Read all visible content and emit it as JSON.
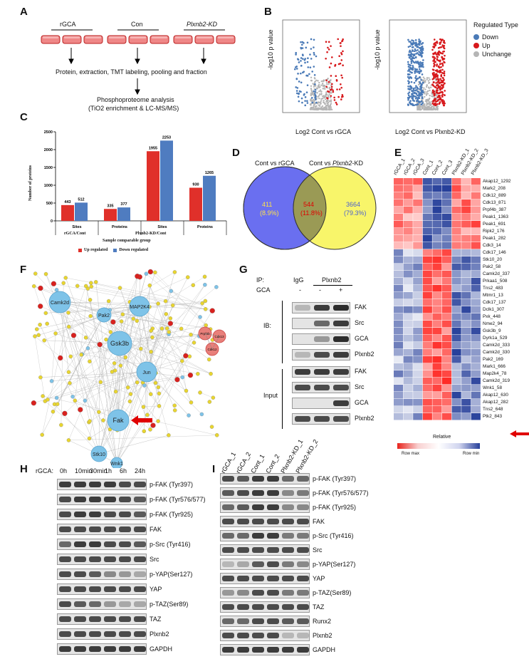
{
  "panels": {
    "A": "A",
    "B": "B",
    "C": "C",
    "D": "D",
    "E": "E",
    "F": "F",
    "G": "G",
    "H": "H",
    "I": "I"
  },
  "panelA": {
    "groups": [
      "rGCA",
      "Con",
      "Plxnb2-KD"
    ],
    "step1": "Protein, extraction, TMT labeling, pooling and fraction",
    "step2_line1": "Phosphoproteome analysis",
    "step2_line2": "(TiO2 enrichment & LC-MS/MS)"
  },
  "panelB": {
    "ylabel": "-log10 p value",
    "xlabel_left": "Log2 Cont vs rGCA",
    "xlabel_right": "Log2 Cont vs Plxnb2-KD",
    "legend_title": "Regulated Type",
    "legend": [
      {
        "label": "Down",
        "color": "#4a7ab7"
      },
      {
        "label": "Up",
        "color": "#d7191c"
      },
      {
        "label": "Unchange",
        "color": "#b5b5b5"
      }
    ]
  },
  "chart_data": {
    "type": "bar",
    "categories": [
      "Sites",
      "Proteins",
      "Sites",
      "Proteins"
    ],
    "groups": [
      "rGCA/Cont",
      "Plxnb2-KD/Cont"
    ],
    "series": [
      {
        "name": "Up regulated",
        "values": [
          443,
          335,
          1955,
          930
        ],
        "color": "#e0302a"
      },
      {
        "name": "Down regulated",
        "values": [
          512,
          377,
          2253,
          1265
        ],
        "color": "#4f7cc0"
      }
    ],
    "ylabel": "Number of proteins",
    "xlabel": "Sample comparable group",
    "ylim": [
      0,
      2500
    ],
    "yticks": [
      "0",
      "500",
      "1000",
      "1500",
      "2000",
      "2500"
    ],
    "legend_position": "bottom"
  },
  "panelD": {
    "left_title": "Cont vs rGCA",
    "right_title": "Cont vs Plxnb2-KD",
    "left_count": "411",
    "left_pct": "(8.9%)",
    "mid_count": "544",
    "mid_pct": "(11.8%)",
    "right_count": "3664",
    "right_pct": "(79.3%)"
  },
  "panelE": {
    "columns": [
      "rGCA_1",
      "rGCA_2",
      "rGCA_3",
      "Cont_1",
      "Cont_2",
      "Cont_3",
      "Plxnb2-KD_1",
      "Plxnb2-KD_2",
      "Plxnb2-KD_3"
    ],
    "rows": [
      "Akap12_1292",
      "Mark2_208",
      "Cdk12_889",
      "Cdk13_871",
      "Prpf4b_387",
      "Peak1_1363",
      "Peak1_691",
      "Ripk2_176",
      "Peak1_282",
      "Cdk3_14",
      "Cdk17_146",
      "Stk10_20",
      "Pak2_58",
      "Camk2d_337",
      "Prkaa1_508",
      "Tns2_483",
      "Mtmr1_13",
      "Cdk17_137",
      "Dclk1_307",
      "Pxk_448",
      "Nme2_94",
      "Gsk3b_9",
      "Dyrk1a_529",
      "Camk2d_333",
      "Camk2d_330",
      "Pak2_169",
      "Mark1_666",
      "Map2k4_78",
      "Camk2d_319",
      "Wnk1_58",
      "Akap12_630",
      "Akap12_282",
      "Tns2_648",
      "Ptk2_843"
    ],
    "legend_title": "Relative",
    "legend_max": "Row max",
    "legend_min": "Row min"
  },
  "panelF": {
    "hubs": [
      "Camk2d",
      "Pak2",
      "MAP2K4",
      "Gsk3b",
      "Jun",
      "Fak",
      "Stk10",
      "Wnk1"
    ],
    "red_nodes": [
      "Prpf4b",
      "Cdk13",
      "Cdk12"
    ]
  },
  "panelG": {
    "ip_label": "IP:",
    "ip_cols": [
      "IgG",
      "Plxnb2"
    ],
    "gca_label": "GCA",
    "gca_signs": [
      "-",
      "-",
      "+"
    ],
    "ib_label": "IB:",
    "input_label": "Input",
    "ib_rows": [
      "FAK",
      "Src",
      "GCA",
      "Plxnb2"
    ],
    "input_rows": [
      "FAK",
      "Src",
      "GCA",
      "Plxnb2"
    ]
  },
  "panelH": {
    "treatment": "rGCA:",
    "timepoints": [
      "0h",
      "10min",
      "30min",
      "1h",
      "6h",
      "24h"
    ],
    "rows": [
      "p-FAK (Tyr397)",
      "p-FAK (Tyr576/577)",
      "p-FAK (Tyr925)",
      "FAK",
      "p-Src (Tyr416)",
      "Src",
      "p-YAP(Ser127)",
      "YAP",
      "p-TAZ(Ser89)",
      "TAZ",
      "Plxnb2",
      "GAPDH"
    ]
  },
  "panelI": {
    "columns": [
      "rGCA_1",
      "rGCA_2",
      "Cont_1",
      "Cont_2",
      "Plxnb2-KD_1",
      "Plxnb2-KD_2"
    ],
    "rows": [
      "p-FAK (Tyr397)",
      "p-FAK (Tyr576/577)",
      "p-FAK (Tyr925)",
      "FAK",
      "p-Src (Tyr416)",
      "Src",
      "p-YAP(Ser127)",
      "YAP",
      "p-TAZ(Ser89)",
      "TAZ",
      "Runx2",
      "Plxnb2",
      "GAPDH"
    ]
  },
  "colors": {
    "red": "#d7191c",
    "blue": "#4a7ab7",
    "venn_left": "#6a6ff0",
    "venn_right": "#f8f56a",
    "venn_mid": "#9a9a55",
    "hub": "#7ec3e8",
    "leaf": "#e8d530",
    "arrow": "#e00000"
  }
}
